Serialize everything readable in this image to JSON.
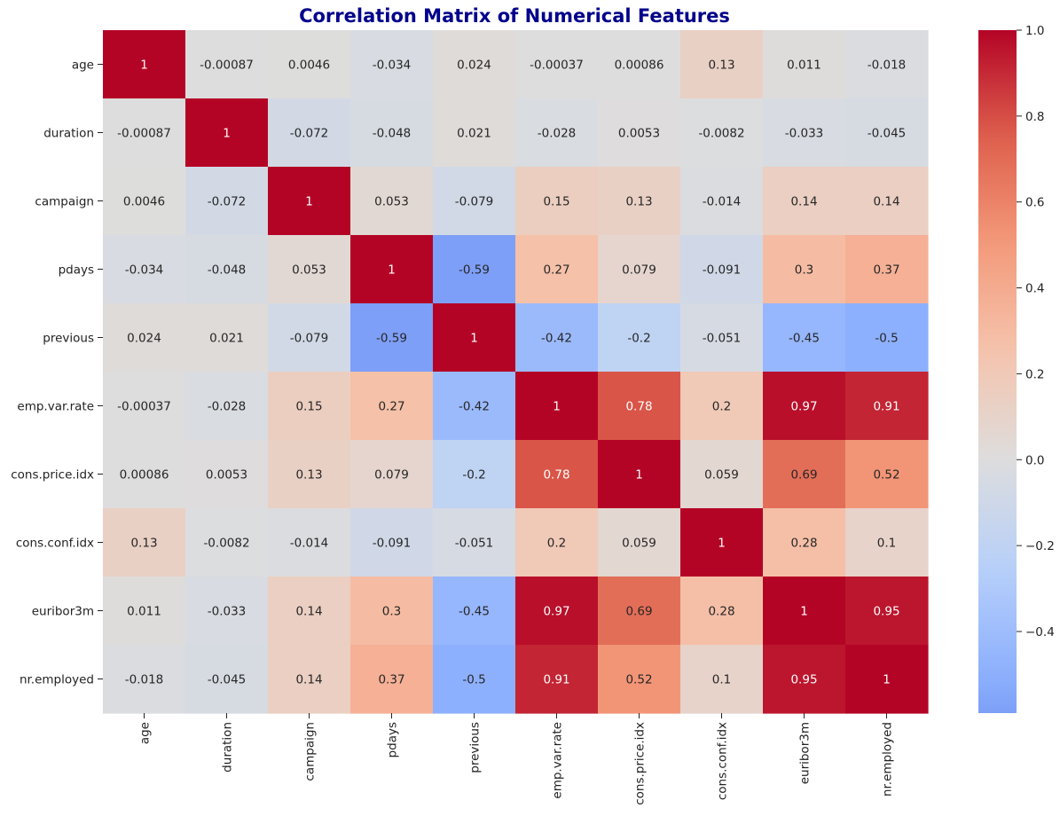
{
  "chart_data": {
    "type": "heatmap",
    "title": "Correlation Matrix of Numerical Features",
    "xlabel": "",
    "ylabel": "",
    "labels": [
      "age",
      "duration",
      "campaign",
      "pdays",
      "previous",
      "emp.var.rate",
      "cons.price.idx",
      "cons.conf.idx",
      "euribor3m",
      "nr.employed"
    ],
    "values": [
      [
        1,
        -0.00087,
        0.0046,
        -0.034,
        0.024,
        -0.00037,
        0.00086,
        0.13,
        0.011,
        -0.018
      ],
      [
        -0.00087,
        1,
        -0.072,
        -0.048,
        0.021,
        -0.028,
        0.0053,
        -0.0082,
        -0.033,
        -0.045
      ],
      [
        0.0046,
        -0.072,
        1,
        0.053,
        -0.079,
        0.15,
        0.13,
        -0.014,
        0.14,
        0.14
      ],
      [
        -0.034,
        -0.048,
        0.053,
        1,
        -0.59,
        0.27,
        0.079,
        -0.091,
        0.3,
        0.37
      ],
      [
        0.024,
        0.021,
        -0.079,
        -0.59,
        1,
        -0.42,
        -0.2,
        -0.051,
        -0.45,
        -0.5
      ],
      [
        -0.00037,
        -0.028,
        0.15,
        0.27,
        -0.42,
        1,
        0.78,
        0.2,
        0.97,
        0.91
      ],
      [
        0.00086,
        0.0053,
        0.13,
        0.079,
        -0.2,
        0.78,
        1,
        0.059,
        0.69,
        0.52
      ],
      [
        0.13,
        -0.0082,
        -0.014,
        -0.091,
        -0.051,
        0.2,
        0.059,
        1,
        0.28,
        0.1
      ],
      [
        0.011,
        -0.033,
        0.14,
        0.3,
        -0.45,
        0.97,
        0.69,
        0.28,
        1,
        0.95
      ],
      [
        -0.018,
        -0.045,
        0.14,
        0.37,
        -0.5,
        0.91,
        0.52,
        0.1,
        0.95,
        1
      ]
    ],
    "annotations": [
      [
        "1",
        "-0.00087",
        "0.0046",
        "-0.034",
        "0.024",
        "-0.00037",
        "0.00086",
        "0.13",
        "0.011",
        "-0.018"
      ],
      [
        "-0.00087",
        "1",
        "-0.072",
        "-0.048",
        "0.021",
        "-0.028",
        "0.0053",
        "-0.0082",
        "-0.033",
        "-0.045"
      ],
      [
        "0.0046",
        "-0.072",
        "1",
        "0.053",
        "-0.079",
        "0.15",
        "0.13",
        "-0.014",
        "0.14",
        "0.14"
      ],
      [
        "-0.034",
        "-0.048",
        "0.053",
        "1",
        "-0.59",
        "0.27",
        "0.079",
        "-0.091",
        "0.3",
        "0.37"
      ],
      [
        "0.024",
        "0.021",
        "-0.079",
        "-0.59",
        "1",
        "-0.42",
        "-0.2",
        "-0.051",
        "-0.45",
        "-0.5"
      ],
      [
        "-0.00037",
        "-0.028",
        "0.15",
        "0.27",
        "-0.42",
        "1",
        "0.78",
        "0.2",
        "0.97",
        "0.91"
      ],
      [
        "0.00086",
        "0.0053",
        "0.13",
        "0.079",
        "-0.2",
        "0.78",
        "1",
        "0.059",
        "0.69",
        "0.52"
      ],
      [
        "0.13",
        "-0.0082",
        "-0.014",
        "-0.091",
        "-0.051",
        "0.2",
        "0.059",
        "1",
        "0.28",
        "0.1"
      ],
      [
        "0.011",
        "-0.033",
        "0.14",
        "0.3",
        "-0.45",
        "0.97",
        "0.69",
        "0.28",
        "1",
        "0.95"
      ],
      [
        "-0.018",
        "-0.045",
        "0.14",
        "0.37",
        "-0.5",
        "0.91",
        "0.52",
        "0.1",
        "0.95",
        "1"
      ]
    ],
    "colormap": "coolwarm",
    "center": 0,
    "vmin": -0.59,
    "vmax": 1,
    "colorbar_ticks": [
      -0.4,
      -0.2,
      0.0,
      0.2,
      0.4,
      0.6,
      0.8,
      1.0
    ],
    "colorbar_tick_labels": [
      "−0.4",
      "−0.2",
      "0.0",
      "0.2",
      "0.4",
      "0.6",
      "0.8",
      "1.0"
    ],
    "legend": "right"
  }
}
